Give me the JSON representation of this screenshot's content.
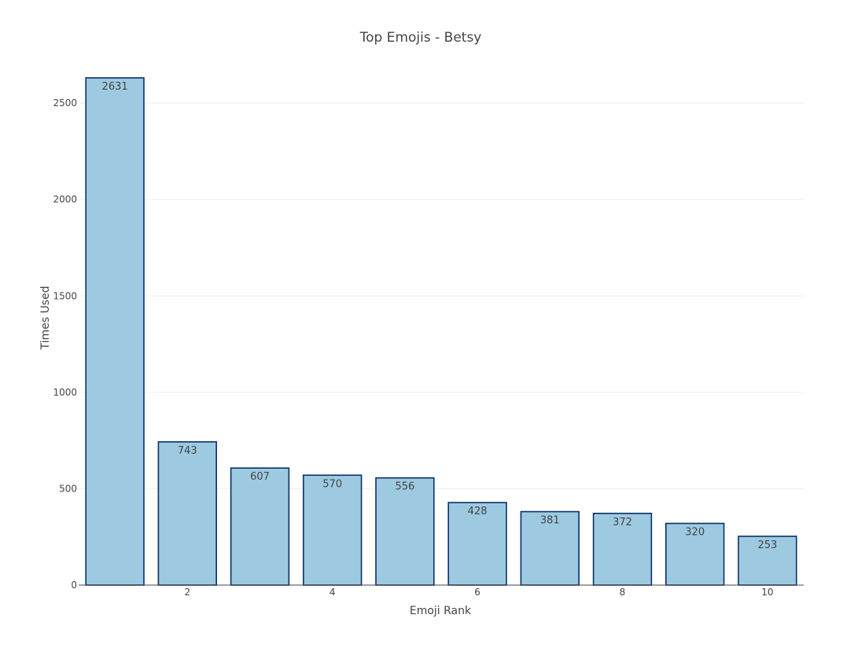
{
  "chart_data": {
    "type": "bar",
    "title": "Top Emojis - Betsy",
    "xlabel": "Emoji Rank",
    "ylabel": "Times Used",
    "categories": [
      1,
      2,
      3,
      4,
      5,
      6,
      7,
      8,
      9,
      10
    ],
    "values": [
      2631,
      743,
      607,
      570,
      556,
      428,
      381,
      372,
      320,
      253
    ],
    "data_labels": [
      "2631",
      "743",
      "607",
      "570",
      "556",
      "428",
      "381",
      "372",
      "320",
      "253"
    ],
    "x_ticks": [
      2,
      4,
      6,
      8,
      10
    ],
    "x_tick_labels": [
      "2",
      "4",
      "6",
      "8",
      "10"
    ],
    "y_ticks": [
      0,
      500,
      1000,
      1500,
      2000,
      2500
    ],
    "y_tick_labels": [
      "0",
      "500",
      "1000",
      "1500",
      "2000",
      "2500"
    ],
    "ylim": [
      0,
      2631
    ],
    "xlim": [
      0.5,
      10.5
    ],
    "grid": true,
    "legend": false,
    "colors": {
      "bar_fill": "#9ecae1",
      "bar_edge": "#08306b",
      "grid": "#eeeeee",
      "text": "#444444"
    }
  }
}
